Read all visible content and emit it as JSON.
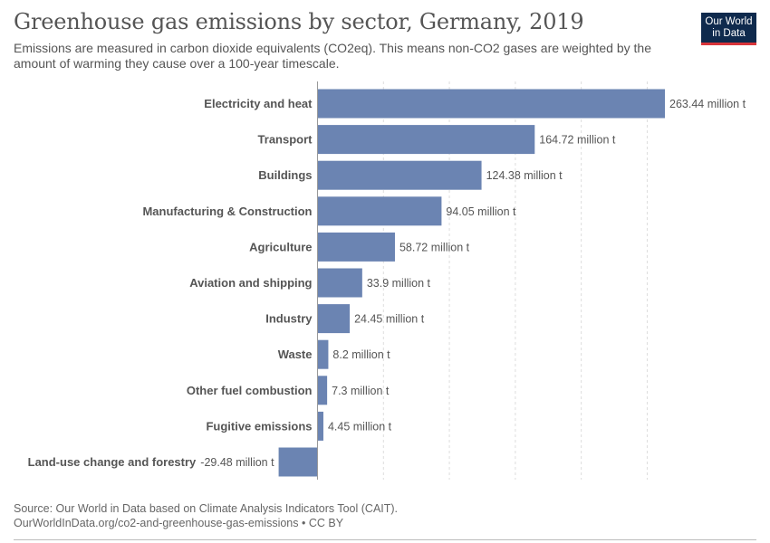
{
  "header": {
    "title": "Greenhouse gas emissions by sector, Germany, 2019",
    "subtitle": "Emissions are measured in carbon dioxide equivalents (CO2eq). This means non-CO2 gases are weighted by the amount of warming they cause over a 100-year timescale.",
    "logo_line1": "Our World",
    "logo_line2": "in Data"
  },
  "footer": {
    "source": "Source: Our World in Data based on Climate Analysis Indicators Tool (CAIT).",
    "url_license": "OurWorldInData.org/co2-and-greenhouse-gas-emissions • CC BY"
  },
  "colors": {
    "bar": "#6b84b2",
    "grid": "#dddddd",
    "logo_bg": "#0f2a4d",
    "logo_stripe": "#d8343a"
  },
  "chart_data": {
    "type": "bar",
    "orientation": "horizontal",
    "title": "Greenhouse gas emissions by sector, Germany, 2019",
    "unit": "million t",
    "categories": [
      "Electricity and heat",
      "Transport",
      "Buildings",
      "Manufacturing & Construction",
      "Agriculture",
      "Aviation and shipping",
      "Industry",
      "Waste",
      "Other fuel combustion",
      "Fugitive emissions",
      "Land-use change and forestry"
    ],
    "values": [
      263.44,
      164.72,
      124.38,
      94.05,
      58.72,
      33.9,
      24.45,
      8.2,
      7.3,
      4.45,
      -29.48
    ],
    "value_labels": [
      "263.44 million t",
      "164.72 million t",
      "124.38 million t",
      "94.05 million t",
      "58.72 million t",
      "33.9 million t",
      "24.45 million t",
      "8.2 million t",
      "7.3 million t",
      "4.45 million t",
      "-29.48 million t"
    ],
    "xlim": [
      -29.48,
      263.44
    ],
    "gridlines": [
      50,
      100,
      150,
      200,
      250
    ],
    "grid": true,
    "legend": false
  }
}
